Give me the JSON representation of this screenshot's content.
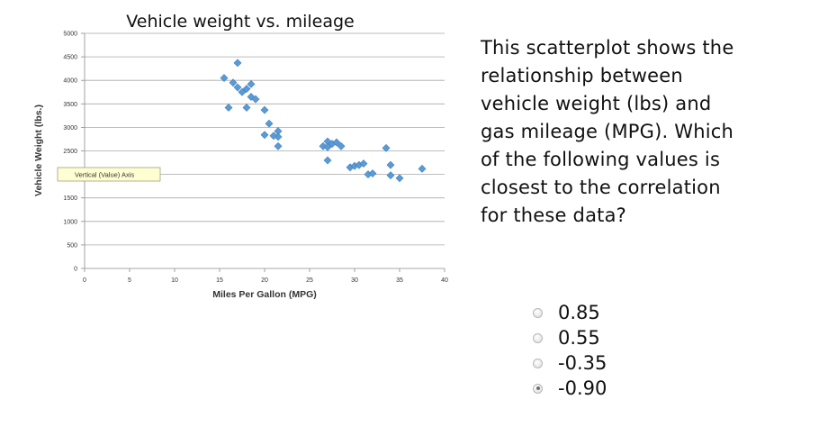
{
  "chart_data": {
    "type": "scatter",
    "title": "Vehicle weight vs. mileage",
    "xlabel": "Miles Per Gallon (MPG)",
    "ylabel": "Vehicle Weight (lbs.)",
    "xlim": [
      0,
      40
    ],
    "ylim": [
      0,
      5000
    ],
    "x_ticks": [
      "0",
      "5",
      "10",
      "15",
      "20",
      "25",
      "30",
      "35",
      "40"
    ],
    "y_ticks": [
      "0",
      "500",
      "1000",
      "1500",
      "2000",
      "2500",
      "3000",
      "3500",
      "4000",
      "4500",
      "5000"
    ],
    "grid": "horizontal",
    "marker_color": "#5b9bd5",
    "points": [
      [
        15.5,
        4050
      ],
      [
        17.0,
        4370
      ],
      [
        16.5,
        3950
      ],
      [
        17.0,
        3850
      ],
      [
        17.5,
        3750
      ],
      [
        18.0,
        3820
      ],
      [
        18.5,
        3920
      ],
      [
        18.5,
        3650
      ],
      [
        19.0,
        3600
      ],
      [
        16.0,
        3420
      ],
      [
        18.0,
        3420
      ],
      [
        20.0,
        3370
      ],
      [
        20.5,
        3080
      ],
      [
        21.5,
        2920
      ],
      [
        21.5,
        2800
      ],
      [
        21.0,
        2820
      ],
      [
        20.0,
        2840
      ],
      [
        21.5,
        2600
      ],
      [
        26.5,
        2600
      ],
      [
        27.0,
        2700
      ],
      [
        27.5,
        2650
      ],
      [
        27.0,
        2580
      ],
      [
        28.0,
        2680
      ],
      [
        28.5,
        2600
      ],
      [
        27.0,
        2300
      ],
      [
        29.5,
        2150
      ],
      [
        30.0,
        2180
      ],
      [
        30.5,
        2200
      ],
      [
        31.0,
        2230
      ],
      [
        31.5,
        2000
      ],
      [
        32.0,
        2020
      ],
      [
        33.5,
        2560
      ],
      [
        34.0,
        2200
      ],
      [
        34.0,
        1980
      ],
      [
        35.0,
        1920
      ],
      [
        37.5,
        2120
      ]
    ]
  },
  "tooltip": {
    "text": "Vertical (Value) Axis"
  },
  "question": {
    "lines": [
      "This scatterplot shows the",
      "relationship between",
      "vehicle weight (lbs) and",
      "gas mileage (MPG). Which",
      "of the following values is",
      "closest to the correlation",
      "for these data?"
    ],
    "options": [
      {
        "label": "0.85",
        "selected": false
      },
      {
        "label": "0.55",
        "selected": false
      },
      {
        "label": "-0.35",
        "selected": false
      },
      {
        "label": "-0.90",
        "selected": true
      }
    ]
  }
}
